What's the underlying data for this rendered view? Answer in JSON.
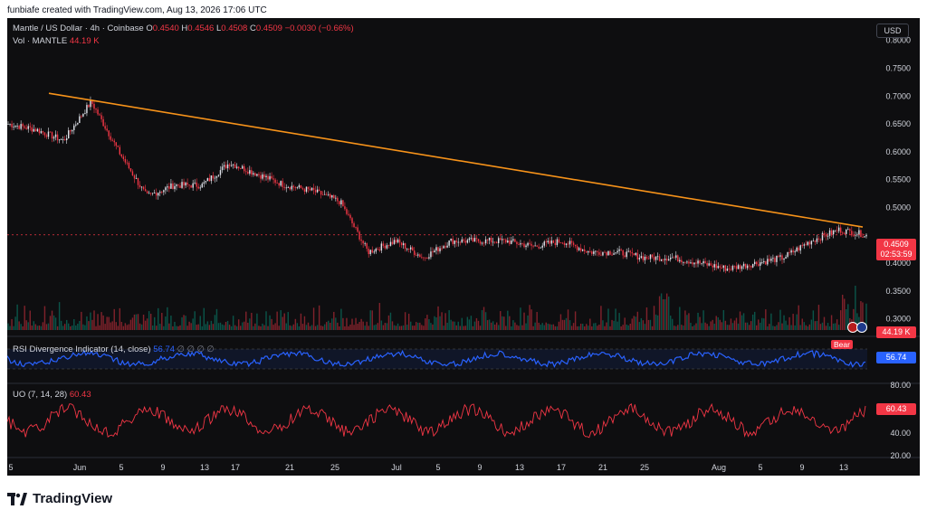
{
  "topbar": {
    "attribution": "funbiafe created with TradingView.com, Aug 13, 2026 17:06 UTC"
  },
  "legend": {
    "symbol": "Mantle / US Dollar · 4h · Coinbase",
    "o_label": "O",
    "o_value": "0.4540",
    "h_label": "H",
    "h_value": "0.4546",
    "l_label": "L",
    "l_value": "0.4508",
    "c_label": "C",
    "c_value": "0.4509",
    "change": "−0.0030 (−0.66%)",
    "vol_label": "Vol · MANTLE",
    "vol_value": "44.19 K"
  },
  "currency_button": "USD",
  "price_axis": {
    "ticks": [
      "0.8000",
      "0.7500",
      "0.7000",
      "0.6500",
      "0.6000",
      "0.5500",
      "0.5000",
      "0.4000",
      "0.3500",
      "0.3000"
    ],
    "last_price": "0.4509",
    "countdown": "02:53:59",
    "volume_badge": "44.19 K"
  },
  "rsi": {
    "label": "RSI Divergence Indicator (14, close)",
    "value": "56.74",
    "placeholders": "∅ ∅ ∅ ∅",
    "bear_label": "Bear"
  },
  "uo": {
    "label": "UO (7, 14, 28)",
    "value": "60.43",
    "ticks": [
      "80.00",
      "40.00",
      "20.00"
    ]
  },
  "time_axis": [
    "5",
    "Jun",
    "5",
    "9",
    "13",
    "17",
    "21",
    "25",
    "Jul",
    "5",
    "9",
    "13",
    "17",
    "21",
    "25",
    "Aug",
    "5",
    "9",
    "13"
  ],
  "footer": {
    "brand": "TradingView"
  },
  "colors": {
    "up": "#e0e3eb",
    "down": "#f23645",
    "trendline": "#f7931a",
    "rsi": "#2962ff",
    "uo": "#f23645",
    "background": "#0e0e10"
  },
  "chart_data": {
    "type": "line",
    "price_series_approx": {
      "x": [
        "May 25",
        "May 27",
        "May 29",
        "May 31",
        "Jun 3",
        "Jun 6",
        "Jun 9",
        "Jun 12",
        "Jun 15",
        "Jun 17",
        "Jun 20",
        "Jun 23",
        "Jun 25",
        "Jun 26",
        "Jun 28",
        "Jul 1",
        "Jul 4",
        "Jul 7",
        "Jul 10",
        "Jul 13",
        "Jul 16",
        "Jul 19",
        "Jul 22",
        "Jul 25",
        "Jul 28",
        "Jul 31",
        "Aug 3",
        "Aug 6",
        "Aug 9",
        "Aug 11",
        "Aug 12",
        "Aug 13"
      ],
      "close": [
        0.65,
        0.64,
        0.62,
        0.69,
        0.6,
        0.52,
        0.54,
        0.54,
        0.58,
        0.56,
        0.54,
        0.53,
        0.51,
        0.42,
        0.44,
        0.41,
        0.44,
        0.44,
        0.44,
        0.43,
        0.44,
        0.42,
        0.42,
        0.41,
        0.41,
        0.4,
        0.39,
        0.4,
        0.41,
        0.44,
        0.46,
        0.4509
      ]
    },
    "trendline": {
      "from": [
        "May 28",
        0.705
      ],
      "to": [
        "Aug 13",
        0.465
      ]
    },
    "ylim": [
      0.28,
      0.84
    ]
  }
}
